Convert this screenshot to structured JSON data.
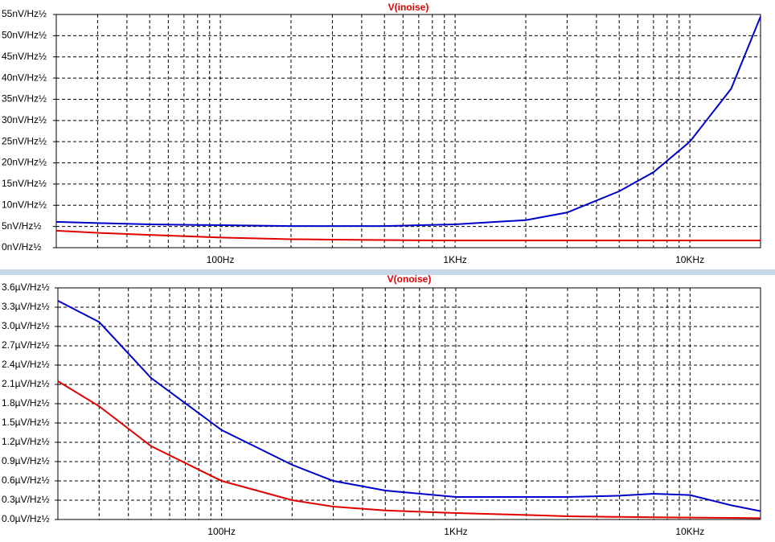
{
  "chart_data": [
    {
      "type": "line",
      "title": "V(inoise)",
      "log_x": true,
      "grid": "dashed",
      "x": [
        20,
        30,
        50,
        100,
        200,
        300,
        500,
        1000,
        2000,
        3000,
        5000,
        7000,
        10000,
        15000,
        20000
      ],
      "series": [
        {
          "color": "#0000c8",
          "values": [
            6.1,
            5.8,
            5.5,
            5.3,
            5.1,
            5.1,
            5.1,
            5.5,
            6.5,
            8.3,
            13.3,
            17.8,
            25,
            37.5,
            54.5
          ]
        },
        {
          "color": "#e00000",
          "values": [
            4.0,
            3.5,
            3.0,
            2.4,
            2.0,
            1.9,
            1.8,
            1.7,
            1.7,
            1.7,
            1.7,
            1.7,
            1.7,
            1.7,
            1.7
          ]
        }
      ],
      "xlim": [
        20,
        20000
      ],
      "xticks": [
        {
          "value": 100,
          "label": "100Hz"
        },
        {
          "value": 1000,
          "label": "1KHz"
        },
        {
          "value": 10000,
          "label": "10KHz"
        }
      ],
      "xgrid_minor": [
        20,
        30,
        40,
        50,
        60,
        70,
        80,
        90,
        200,
        300,
        400,
        500,
        600,
        700,
        800,
        900,
        2000,
        3000,
        4000,
        5000,
        6000,
        7000,
        8000,
        9000,
        20000
      ],
      "ylim": [
        0,
        55
      ],
      "yticks": [
        {
          "value": 0,
          "label": "0nV/Hz½"
        },
        {
          "value": 5,
          "label": "5nV/Hz½"
        },
        {
          "value": 10,
          "label": "10nV/Hz½"
        },
        {
          "value": 15,
          "label": "15nV/Hz½"
        },
        {
          "value": 20,
          "label": "20nV/Hz½"
        },
        {
          "value": 25,
          "label": "25nV/Hz½"
        },
        {
          "value": 30,
          "label": "30nV/Hz½"
        },
        {
          "value": 35,
          "label": "35nV/Hz½"
        },
        {
          "value": 40,
          "label": "40nV/Hz½"
        },
        {
          "value": 45,
          "label": "45nV/Hz½"
        },
        {
          "value": 50,
          "label": "50nV/Hz½"
        },
        {
          "value": 55,
          "label": "55nV/Hz½"
        }
      ]
    },
    {
      "type": "line",
      "title": "V(onoise)",
      "log_x": true,
      "grid": "dashed",
      "x": [
        20,
        30,
        50,
        100,
        200,
        300,
        500,
        1000,
        2000,
        3000,
        5000,
        7000,
        10000,
        15000,
        20000
      ],
      "series": [
        {
          "color": "#0000c8",
          "values": [
            3.4,
            3.07,
            2.2,
            1.39,
            0.85,
            0.6,
            0.45,
            0.35,
            0.35,
            0.35,
            0.37,
            0.4,
            0.38,
            0.22,
            0.13
          ]
        },
        {
          "color": "#e00000",
          "values": [
            2.15,
            1.76,
            1.14,
            0.6,
            0.3,
            0.2,
            0.14,
            0.1,
            0.07,
            0.05,
            0.04,
            0.035,
            0.03,
            0.025,
            0.02
          ]
        }
      ],
      "xlim": [
        20,
        20000
      ],
      "xticks": [
        {
          "value": 100,
          "label": "100Hz"
        },
        {
          "value": 1000,
          "label": "1KHz"
        },
        {
          "value": 10000,
          "label": "10KHz"
        }
      ],
      "xgrid_minor": [
        20,
        30,
        40,
        50,
        60,
        70,
        80,
        90,
        200,
        300,
        400,
        500,
        600,
        700,
        800,
        900,
        2000,
        3000,
        4000,
        5000,
        6000,
        7000,
        8000,
        9000,
        20000
      ],
      "ylim": [
        0,
        3.6
      ],
      "yticks": [
        {
          "value": 0,
          "label": "0.0µV/Hz½"
        },
        {
          "value": 0.3,
          "label": "0.3µV/Hz½"
        },
        {
          "value": 0.6,
          "label": "0.6µV/Hz½"
        },
        {
          "value": 0.9,
          "label": "0.9µV/Hz½"
        },
        {
          "value": 1.2,
          "label": "1.2µV/Hz½"
        },
        {
          "value": 1.5,
          "label": "1.5µV/Hz½"
        },
        {
          "value": 1.8,
          "label": "1.8µV/Hz½"
        },
        {
          "value": 2.1,
          "label": "2.1µV/Hz½"
        },
        {
          "value": 2.4,
          "label": "2.4µV/Hz½"
        },
        {
          "value": 2.7,
          "label": "2.7µV/Hz½"
        },
        {
          "value": 3.0,
          "label": "3.0µV/Hz½"
        },
        {
          "value": 3.3,
          "label": "3.3µV/Hz½"
        },
        {
          "value": 3.6,
          "label": "3.6µV/Hz½"
        }
      ]
    }
  ]
}
